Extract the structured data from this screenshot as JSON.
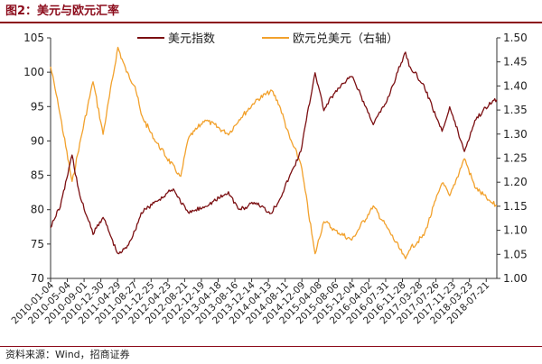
{
  "figure": {
    "title": "图2：美元与欧元汇率",
    "source": "资料来源：Wind，招商证券"
  },
  "colors": {
    "title": "#8b0a1a",
    "usd_index": "#7b0f12",
    "eurusd": "#f2a12c",
    "axis": "#333333"
  },
  "chart_data": {
    "type": "line",
    "y_left": {
      "ylim": [
        70,
        105
      ],
      "ticks": [
        "70",
        "75",
        "80",
        "85",
        "90",
        "95",
        "100",
        "105"
      ]
    },
    "y_right": {
      "ylim": [
        1.0,
        1.5
      ],
      "ticks": [
        "1.00",
        "1.05",
        "1.10",
        "1.15",
        "1.20",
        "1.25",
        "1.30",
        "1.35",
        "1.40",
        "1.45",
        "1.50"
      ]
    },
    "x_ticks": [
      "2010-01-04",
      "2010-05-04",
      "2010-09-01",
      "2010-12-30",
      "2011-04-29",
      "2011-08-27",
      "2011-12-25",
      "2012-04-23",
      "2012-08-21",
      "2012-12-19",
      "2013-04-18",
      "2013-08-16",
      "2013-12-14",
      "2014-04-13",
      "2014-08-11",
      "2014-12-09",
      "2015-04-08",
      "2015-08-06",
      "2015-12-04",
      "2016-04-02",
      "2016-07-31",
      "2016-11-28",
      "2017-03-28",
      "2017-07-26",
      "2017-11-23",
      "2018-03-23",
      "2018-07-21"
    ],
    "legend": {
      "placement": "top",
      "items": [
        "美元指数",
        "欧元兑美元（右轴）"
      ]
    },
    "grid": false,
    "series": [
      {
        "name": "美元指数",
        "axis": "left",
        "x": [
          "2010-01-04",
          "2010-03-15",
          "2010-06-07",
          "2010-08-01",
          "2010-11-04",
          "2011-01-15",
          "2011-05-01",
          "2011-07-01",
          "2011-09-01",
          "2011-10-15",
          "2012-01-15",
          "2012-06-01",
          "2012-09-15",
          "2013-01-15",
          "2013-07-01",
          "2013-09-15",
          "2014-01-15",
          "2014-05-01",
          "2014-07-01",
          "2014-09-15",
          "2014-12-01",
          "2015-03-13",
          "2015-05-15",
          "2015-08-01",
          "2015-12-01",
          "2016-05-03",
          "2016-08-01",
          "2016-12-20",
          "2017-01-15",
          "2017-05-01",
          "2017-09-08",
          "2017-11-01",
          "2018-02-15",
          "2018-05-01",
          "2018-08-15",
          "2018-10-05"
        ],
        "values": [
          77.5,
          80.5,
          88.0,
          82.0,
          76.5,
          79.0,
          73.5,
          74.5,
          77.0,
          79.5,
          81.0,
          83.0,
          79.5,
          80.5,
          82.5,
          80.0,
          81.0,
          79.5,
          81.5,
          85.0,
          88.5,
          100.0,
          94.5,
          97.0,
          99.5,
          92.5,
          95.5,
          103.0,
          101.0,
          98.0,
          91.5,
          95.0,
          88.5,
          93.0,
          95.5,
          96.0
        ]
      },
      {
        "name": "欧元兑美元（右轴）",
        "axis": "right",
        "x": [
          "2010-01-04",
          "2010-03-01",
          "2010-06-07",
          "2010-08-01",
          "2010-11-04",
          "2011-01-15",
          "2011-05-01",
          "2011-07-01",
          "2011-09-01",
          "2011-10-15",
          "2012-01-15",
          "2012-07-24",
          "2012-09-15",
          "2013-01-15",
          "2013-07-01",
          "2013-09-15",
          "2014-01-15",
          "2014-05-08",
          "2014-07-01",
          "2014-09-15",
          "2014-12-01",
          "2015-03-13",
          "2015-05-15",
          "2015-08-01",
          "2015-12-01",
          "2016-05-03",
          "2016-08-01",
          "2016-12-20",
          "2017-01-15",
          "2017-05-01",
          "2017-09-08",
          "2017-11-01",
          "2018-02-15",
          "2018-05-01",
          "2018-08-15",
          "2018-10-05"
        ],
        "values": [
          1.44,
          1.36,
          1.2,
          1.28,
          1.41,
          1.3,
          1.48,
          1.43,
          1.4,
          1.34,
          1.29,
          1.21,
          1.29,
          1.33,
          1.3,
          1.33,
          1.37,
          1.39,
          1.36,
          1.29,
          1.24,
          1.05,
          1.12,
          1.1,
          1.08,
          1.15,
          1.11,
          1.04,
          1.06,
          1.09,
          1.2,
          1.17,
          1.25,
          1.19,
          1.16,
          1.15
        ]
      }
    ]
  }
}
